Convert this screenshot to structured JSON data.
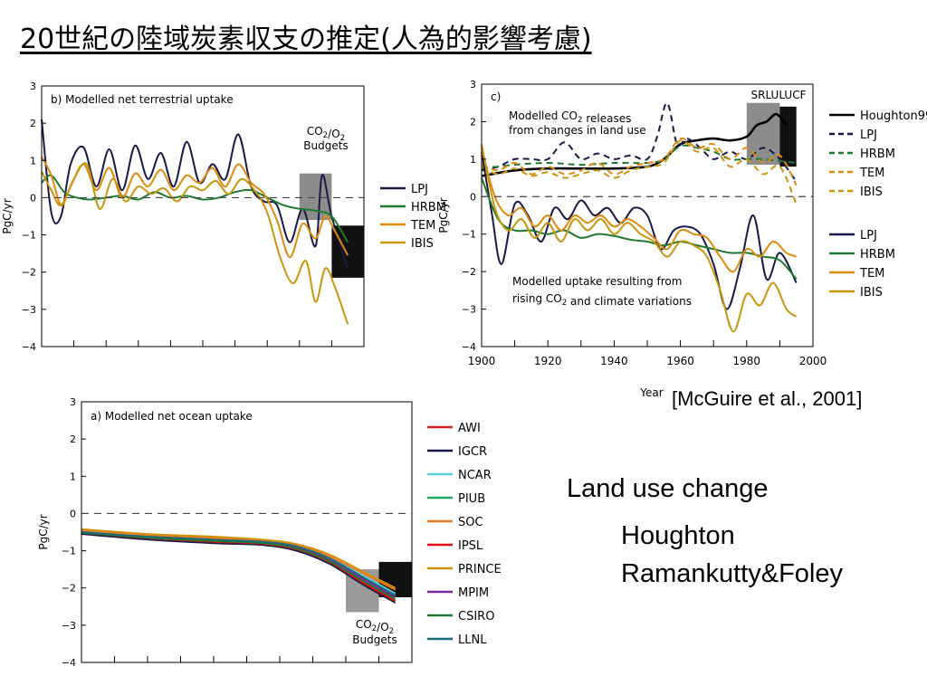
{
  "slide": {
    "title": "20世紀の陸域炭素収支の推定(人為的影響考慮)",
    "citation": "[McGuire et al., 2001]",
    "notes": [
      "Land use change",
      "Houghton",
      "Ramankutty&Foley"
    ]
  },
  "chart_data": [
    {
      "id": "b",
      "type": "line",
      "title": "b) Modelled net terrestrial uptake",
      "ylabel": "PgC/yr",
      "ylim": [
        -4,
        3
      ],
      "xlim": [
        1900,
        2000
      ],
      "yticks": [
        -4,
        -3,
        -2,
        -1,
        0,
        1,
        2,
        3
      ],
      "annotation": [
        "CO2/O2",
        "Budgets"
      ],
      "series": [
        {
          "name": "LPJ",
          "color": "#1a1a4a",
          "x": [
            1900,
            1903,
            1906,
            1909,
            1913,
            1917,
            1921,
            1925,
            1929,
            1933,
            1937,
            1941,
            1945,
            1949,
            1953,
            1957,
            1961,
            1965,
            1969,
            1973,
            1977,
            1981,
            1985,
            1987,
            1990,
            1995
          ],
          "values": [
            2.1,
            -0.4,
            -0.5,
            0.9,
            1.35,
            0.3,
            1.3,
            0.2,
            1.4,
            0.5,
            1.2,
            0.3,
            1.5,
            0.4,
            0.9,
            0.5,
            1.7,
            0.3,
            -0.1,
            -0.2,
            -1.2,
            -0.3,
            -1.3,
            0.6,
            -0.5,
            -1.9
          ]
        },
        {
          "name": "HRBM",
          "color": "#1f7a2e",
          "x": [
            1900,
            1903,
            1907,
            1911,
            1915,
            1920,
            1925,
            1930,
            1935,
            1940,
            1945,
            1950,
            1955,
            1960,
            1965,
            1970,
            1975,
            1980,
            1985,
            1990,
            1995
          ],
          "values": [
            0.4,
            0.6,
            0.15,
            0.0,
            -0.05,
            0.0,
            0.05,
            -0.05,
            0.15,
            0.0,
            0.05,
            -0.05,
            0.0,
            0.15,
            0.2,
            0.0,
            -0.2,
            -0.3,
            -0.35,
            -0.5,
            -1.2
          ]
        },
        {
          "name": "TEM",
          "color": "#e08a10",
          "x": [
            1900,
            1903,
            1906,
            1909,
            1913,
            1917,
            1921,
            1925,
            1929,
            1933,
            1937,
            1941,
            1945,
            1949,
            1953,
            1957,
            1961,
            1965,
            1969,
            1973,
            1977,
            1981,
            1985,
            1988,
            1991,
            1995
          ],
          "values": [
            1.1,
            0.6,
            -0.2,
            0.3,
            0.9,
            0.2,
            0.8,
            0.0,
            0.65,
            0.3,
            0.75,
            0.2,
            0.6,
            0.4,
            0.8,
            0.3,
            0.9,
            0.4,
            0.1,
            -0.6,
            -1.6,
            -0.7,
            -1.1,
            -0.5,
            -0.9,
            -1.55
          ]
        },
        {
          "name": "IBIS",
          "color": "#c9970f",
          "x": [
            1900,
            1903,
            1906,
            1910,
            1914,
            1918,
            1922,
            1926,
            1930,
            1934,
            1938,
            1942,
            1946,
            1950,
            1954,
            1958,
            1962,
            1966,
            1970,
            1974,
            1978,
            1982,
            1985,
            1988,
            1991,
            1995
          ],
          "values": [
            0.7,
            0.2,
            -0.2,
            0.5,
            0.9,
            -0.3,
            0.5,
            -0.1,
            0.3,
            0.1,
            0.25,
            -0.1,
            0.3,
            0.2,
            0.45,
            0.1,
            0.5,
            0.2,
            -0.4,
            -1.6,
            -2.3,
            -1.7,
            -2.8,
            -1.9,
            -2.4,
            -3.4
          ]
        }
      ],
      "boxes": [
        {
          "kind": "CO2/O2 budget 1980s",
          "color": "#8c8c8c",
          "x": [
            1980,
            1990
          ],
          "y": [
            -0.6,
            0.65
          ]
        },
        {
          "kind": "CO2/O2 budget 1990s",
          "color": "#111111",
          "x": [
            1990,
            2000
          ],
          "y": [
            -2.15,
            -0.75
          ]
        }
      ]
    },
    {
      "id": "c",
      "type": "line",
      "title": "c)",
      "ylabel": "PgC/yr",
      "xlabel": "Year",
      "ylim": [
        -4,
        3
      ],
      "xlim": [
        1900,
        2000
      ],
      "xticks": [
        1900,
        1920,
        1940,
        1960,
        1980,
        2000
      ],
      "yticks": [
        -4,
        -3,
        -2,
        -1,
        0,
        1,
        2,
        3
      ],
      "annotations": [
        "Modelled CO2 releases",
        "from changes in land use",
        "Modelled uptake resulting from",
        "rising CO2 and climate variations",
        "SRLULUCF"
      ],
      "series_releases": [
        {
          "name": "Houghton99",
          "style": "solid",
          "color": "#000000",
          "x": [
            1900,
            1910,
            1920,
            1930,
            1940,
            1950,
            1955,
            1960,
            1965,
            1970,
            1975,
            1980,
            1983,
            1986,
            1989,
            1992
          ],
          "values": [
            0.55,
            0.7,
            0.75,
            0.75,
            0.75,
            0.8,
            1.0,
            1.4,
            1.5,
            1.55,
            1.5,
            1.6,
            1.9,
            2.0,
            2.2,
            1.9
          ]
        },
        {
          "name": "LPJ",
          "style": "dashed",
          "color": "#1a1a4a",
          "x": [
            1900,
            1905,
            1910,
            1915,
            1920,
            1925,
            1930,
            1935,
            1940,
            1945,
            1950,
            1953,
            1956,
            1959,
            1962,
            1966,
            1970,
            1975,
            1980,
            1985,
            1990,
            1995
          ],
          "values": [
            0.7,
            0.8,
            1.0,
            1.0,
            1.0,
            1.45,
            1.0,
            1.15,
            1.0,
            1.1,
            1.0,
            1.6,
            2.5,
            1.4,
            1.55,
            1.3,
            1.0,
            1.2,
            1.0,
            1.3,
            1.0,
            0.4
          ]
        },
        {
          "name": "HRBM",
          "style": "dashed",
          "color": "#1f7a2e",
          "x": [
            1900,
            1910,
            1920,
            1930,
            1940,
            1950,
            1955,
            1960,
            1965,
            1970,
            1975,
            1980,
            1985,
            1990,
            1995
          ],
          "values": [
            0.75,
            0.85,
            0.9,
            0.85,
            0.9,
            0.9,
            1.0,
            1.35,
            1.3,
            1.2,
            1.0,
            1.0,
            1.0,
            0.95,
            0.9
          ]
        },
        {
          "name": "TEM",
          "style": "dashed",
          "color": "#e08a10",
          "x": [
            1900,
            1905,
            1910,
            1915,
            1920,
            1925,
            1930,
            1935,
            1940,
            1945,
            1950,
            1955,
            1960,
            1965,
            1970,
            1975,
            1980,
            1985,
            1990,
            1995
          ],
          "values": [
            0.85,
            0.7,
            0.9,
            0.6,
            0.8,
            0.6,
            0.7,
            0.9,
            0.6,
            0.8,
            0.9,
            1.0,
            1.55,
            1.3,
            1.4,
            1.0,
            1.3,
            0.9,
            1.1,
            0.3
          ]
        },
        {
          "name": "IBIS",
          "style": "dashed",
          "color": "#c9970f",
          "x": [
            1900,
            1905,
            1910,
            1915,
            1920,
            1925,
            1930,
            1935,
            1940,
            1945,
            1950,
            1955,
            1960,
            1965,
            1970,
            1975,
            1980,
            1985,
            1990,
            1995
          ],
          "values": [
            0.8,
            0.6,
            0.75,
            0.55,
            0.65,
            0.5,
            0.6,
            0.7,
            0.5,
            0.7,
            0.8,
            0.9,
            1.5,
            1.2,
            1.3,
            0.8,
            1.0,
            0.6,
            0.8,
            -0.2
          ]
        }
      ],
      "series_uptake": [
        {
          "name": "LPJ",
          "color": "#1a1a4a",
          "x": [
            1900,
            1903,
            1906,
            1910,
            1914,
            1918,
            1922,
            1926,
            1930,
            1934,
            1938,
            1942,
            1946,
            1950,
            1954,
            1958,
            1962,
            1966,
            1970,
            1974,
            1978,
            1982,
            1986,
            1990,
            1995
          ],
          "values": [
            1.2,
            -0.4,
            -1.8,
            -0.2,
            -0.5,
            -1.2,
            -0.3,
            -0.6,
            -0.1,
            -0.5,
            -0.3,
            -0.7,
            -0.3,
            -0.5,
            -1.4,
            -0.9,
            -0.8,
            -1.0,
            -1.8,
            -3.0,
            -1.9,
            -0.5,
            -2.2,
            -1.5,
            -2.3
          ]
        },
        {
          "name": "HRBM",
          "color": "#1f7a2e",
          "x": [
            1900,
            1905,
            1910,
            1915,
            1920,
            1925,
            1930,
            1935,
            1940,
            1945,
            1950,
            1955,
            1960,
            1965,
            1970,
            1975,
            1980,
            1985,
            1990,
            1995
          ],
          "values": [
            0.5,
            -0.6,
            -0.9,
            -0.9,
            -1.0,
            -0.9,
            -1.1,
            -1.0,
            -1.05,
            -1.15,
            -1.2,
            -1.3,
            -1.2,
            -1.3,
            -1.4,
            -1.5,
            -1.5,
            -1.6,
            -1.7,
            -2.2
          ]
        },
        {
          "name": "TEM",
          "color": "#e08a10",
          "x": [
            1900,
            1904,
            1908,
            1912,
            1916,
            1920,
            1924,
            1928,
            1932,
            1936,
            1940,
            1944,
            1948,
            1952,
            1956,
            1960,
            1964,
            1968,
            1972,
            1976,
            1980,
            1984,
            1988,
            1992,
            1995
          ],
          "values": [
            1.3,
            0.0,
            -0.5,
            -0.3,
            -0.8,
            -0.5,
            -0.9,
            -0.5,
            -0.7,
            -0.5,
            -0.8,
            -0.6,
            -0.8,
            -1.1,
            -1.4,
            -0.9,
            -1.0,
            -1.1,
            -1.6,
            -2.0,
            -1.4,
            -1.6,
            -1.2,
            -1.5,
            -1.6
          ]
        },
        {
          "name": "IBIS",
          "color": "#c9970f",
          "x": [
            1900,
            1904,
            1908,
            1912,
            1916,
            1920,
            1924,
            1928,
            1932,
            1936,
            1940,
            1944,
            1948,
            1952,
            1956,
            1960,
            1964,
            1968,
            1972,
            1976,
            1980,
            1984,
            1988,
            1992,
            1995
          ],
          "values": [
            1.4,
            -0.3,
            -0.9,
            -0.6,
            -1.1,
            -0.7,
            -1.2,
            -0.6,
            -0.9,
            -0.6,
            -1.0,
            -0.7,
            -1.0,
            -1.2,
            -1.6,
            -1.2,
            -1.3,
            -1.6,
            -2.5,
            -3.6,
            -2.6,
            -2.9,
            -2.3,
            -3.0,
            -3.2
          ]
        }
      ],
      "boxes": [
        {
          "kind": "SRLULUCF 1980s",
          "color": "#8c8c8c",
          "x": [
            1980,
            1990
          ],
          "y": [
            0.85,
            2.5
          ]
        },
        {
          "kind": "SRLULUCF 1990s",
          "color": "#111111",
          "x": [
            1990,
            1995
          ],
          "y": [
            0.8,
            2.4
          ]
        }
      ]
    },
    {
      "id": "a",
      "type": "line",
      "title": "a) Modelled net ocean uptake",
      "ylabel": "PgC/yr",
      "ylim": [
        -4,
        3
      ],
      "xlim": [
        1900,
        2000
      ],
      "yticks": [
        -4,
        -3,
        -2,
        -1,
        0,
        1,
        2,
        3
      ],
      "annotation": [
        "CO2/O2",
        "Budgets"
      ],
      "series": [
        {
          "name": "AWI",
          "color": "#d02020",
          "x": [
            1900,
            1920,
            1940,
            1955,
            1965,
            1975,
            1985,
            1995
          ],
          "values": [
            -0.5,
            -0.65,
            -0.75,
            -0.8,
            -0.95,
            -1.3,
            -1.85,
            -2.35
          ]
        },
        {
          "name": "IGCR",
          "color": "#1a1a4a",
          "x": [
            1900,
            1920,
            1940,
            1955,
            1965,
            1975,
            1985,
            1995
          ],
          "values": [
            -0.55,
            -0.7,
            -0.8,
            -0.85,
            -1.0,
            -1.35,
            -1.9,
            -2.4
          ]
        },
        {
          "name": "NCAR",
          "color": "#5fd0e8",
          "x": [
            1900,
            1920,
            1940,
            1955,
            1965,
            1975,
            1985,
            1995
          ],
          "values": [
            -0.48,
            -0.6,
            -0.68,
            -0.75,
            -0.85,
            -1.15,
            -1.65,
            -2.15
          ]
        },
        {
          "name": "PIUB",
          "color": "#20a860",
          "x": [
            1900,
            1920,
            1940,
            1955,
            1965,
            1975,
            1985,
            1995
          ],
          "values": [
            -0.5,
            -0.62,
            -0.7,
            -0.78,
            -0.9,
            -1.2,
            -1.7,
            -2.2
          ]
        },
        {
          "name": "SOC",
          "color": "#f07a20",
          "x": [
            1900,
            1920,
            1940,
            1955,
            1965,
            1975,
            1985,
            1995
          ],
          "values": [
            -0.45,
            -0.58,
            -0.66,
            -0.72,
            -0.85,
            -1.15,
            -1.6,
            -2.05
          ]
        },
        {
          "name": "IPSL",
          "color": "#e01010",
          "x": [
            1900,
            1920,
            1940,
            1955,
            1965,
            1975,
            1985,
            1995
          ],
          "values": [
            -0.52,
            -0.66,
            -0.76,
            -0.82,
            -0.96,
            -1.3,
            -1.85,
            -2.35
          ]
        },
        {
          "name": "PRINCE",
          "color": "#d0900a",
          "x": [
            1900,
            1920,
            1940,
            1955,
            1965,
            1975,
            1985,
            1995
          ],
          "values": [
            -0.42,
            -0.55,
            -0.62,
            -0.7,
            -0.82,
            -1.1,
            -1.55,
            -2.0
          ]
        },
        {
          "name": "MPIM",
          "color": "#7a2aa0",
          "x": [
            1900,
            1920,
            1940,
            1955,
            1965,
            1975,
            1985,
            1995
          ],
          "values": [
            -0.5,
            -0.64,
            -0.72,
            -0.8,
            -0.92,
            -1.25,
            -1.75,
            -2.25
          ]
        },
        {
          "name": "CSIRO",
          "color": "#1f7a2e",
          "x": [
            1900,
            1920,
            1940,
            1955,
            1965,
            1975,
            1985,
            1995
          ],
          "values": [
            -0.52,
            -0.65,
            -0.74,
            -0.8,
            -0.94,
            -1.28,
            -1.8,
            -2.3
          ]
        },
        {
          "name": "LLNL",
          "color": "#1a6a7a",
          "x": [
            1900,
            1920,
            1940,
            1955,
            1965,
            1975,
            1985,
            1995
          ],
          "values": [
            -0.5,
            -0.62,
            -0.7,
            -0.76,
            -0.88,
            -1.2,
            -1.7,
            -2.2
          ]
        }
      ],
      "boxes": [
        {
          "kind": "CO2/O2 budget 1980s",
          "color": "#9a9a9a",
          "x": [
            1980,
            1990
          ],
          "y": [
            -2.65,
            -1.5
          ]
        },
        {
          "kind": "CO2/O2 budget 1990s",
          "color": "#111111",
          "x": [
            1990,
            2000
          ],
          "y": [
            -2.25,
            -1.3
          ]
        }
      ]
    }
  ]
}
